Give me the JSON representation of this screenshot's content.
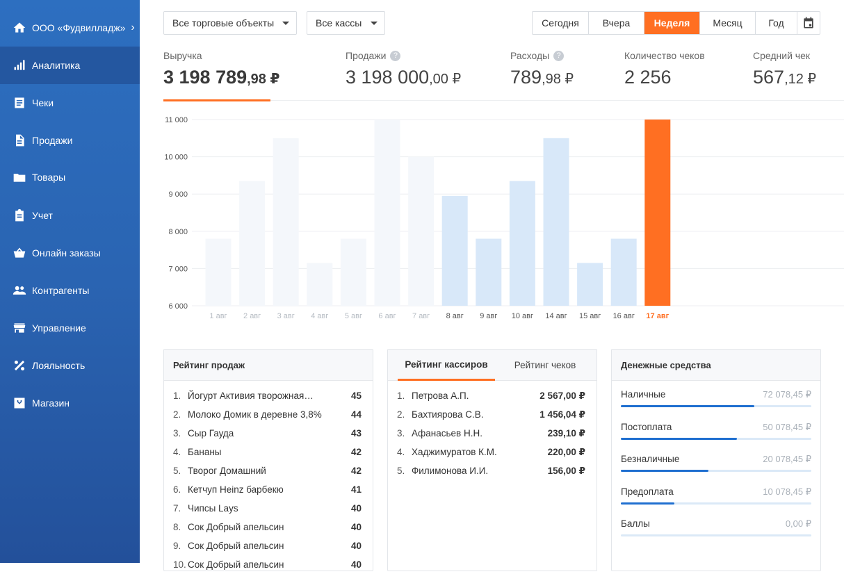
{
  "sidebar": {
    "org": "ООО «Фудвилладж»",
    "items": [
      {
        "label": "Аналитика",
        "icon": "chart-bars-icon",
        "active": true
      },
      {
        "label": "Чеки",
        "icon": "receipt-icon"
      },
      {
        "label": "Продажи",
        "icon": "document-icon"
      },
      {
        "label": "Товары",
        "icon": "folder-icon"
      },
      {
        "label": "Учет",
        "icon": "clipboard-icon"
      },
      {
        "label": "Онлайн заказы",
        "icon": "basket-icon"
      },
      {
        "label": "Контрагенты",
        "icon": "people-icon"
      },
      {
        "label": "Управление",
        "icon": "store-icon"
      },
      {
        "label": "Лояльность",
        "icon": "percent-icon"
      },
      {
        "label": "Магазин",
        "icon": "shop-box-icon"
      }
    ]
  },
  "filters": {
    "outlets": "Все торговые объекты",
    "registers": "Все кассы"
  },
  "periods": [
    "Сегодня",
    "Вчера",
    "Неделя",
    "Месяц",
    "Год"
  ],
  "active_period": "Неделя",
  "kpis": {
    "revenue": {
      "label": "Выручка",
      "int": "3 198 789",
      "cents": ",98 ₽"
    },
    "sales": {
      "label": "Продажи",
      "int": "3 198 000",
      "cents": ",00 ₽"
    },
    "expenses": {
      "label": "Расходы",
      "int": "789",
      "cents": ",98 ₽"
    },
    "checks": {
      "label": "Количество чеков",
      "int": "2 256"
    },
    "avg": {
      "label": "Средний чек",
      "int": "567",
      "cents": ",12 ₽"
    },
    "help": "?"
  },
  "chart_data": {
    "type": "bar",
    "categories": [
      "1 авг",
      "2 авг",
      "3 авг",
      "4 авг",
      "5 авг",
      "6 авг",
      "7 авг",
      "8 авг",
      "9 авг",
      "10 авг",
      "14 авг",
      "15 авг",
      "16 авг",
      "17 авг"
    ],
    "values": [
      7800,
      9350,
      10500,
      7150,
      7800,
      11000,
      10000,
      8950,
      7800,
      9350,
      10500,
      7150,
      7800,
      11000
    ],
    "ylim": [
      6000,
      11000
    ],
    "yticks": [
      6000,
      7000,
      8000,
      9000,
      10000,
      11000
    ],
    "ytick_labels": [
      "6 000",
      "7 000",
      "8 000",
      "9 000",
      "10 000",
      "11 000"
    ],
    "colors": {
      "past": "#f4f7fb",
      "current": "#d8e8f9",
      "selected": "#ff6f22",
      "past_label": "#b6bcc3",
      "label": "#555555"
    },
    "past_count": 7,
    "selected_index": 13
  },
  "sales_rating": {
    "title": "Рейтинг продаж",
    "rows": [
      {
        "n": "1.",
        "name": "Йогурт Активия творожная…",
        "v": "45"
      },
      {
        "n": "2.",
        "name": "Молоко Домик в деревне 3,8%",
        "v": "44"
      },
      {
        "n": "3.",
        "name": "Сыр Гауда",
        "v": "43"
      },
      {
        "n": "4.",
        "name": "Бананы",
        "v": "42"
      },
      {
        "n": "5.",
        "name": "Творог Домашний",
        "v": "42"
      },
      {
        "n": "6.",
        "name": "Кетчуп Heinz барбекю",
        "v": "41"
      },
      {
        "n": "7.",
        "name": "Чипсы Lays",
        "v": "40"
      },
      {
        "n": "8.",
        "name": "Сок Добрый апельсин",
        "v": "40"
      },
      {
        "n": "9.",
        "name": "Сок Добрый апельсин",
        "v": "40"
      },
      {
        "n": "10.",
        "name": "Сок Добрый апельсин",
        "v": "40"
      }
    ]
  },
  "cashiers": {
    "tab_cashiers": "Рейтинг кассиров",
    "tab_checks": "Рейтинг чеков",
    "rows": [
      {
        "n": "1.",
        "name": "Петрова А.П.",
        "v": "2 567,00 ₽"
      },
      {
        "n": "2.",
        "name": "Бахтиярова С.В.",
        "v": "1 456,04 ₽"
      },
      {
        "n": "3.",
        "name": "Афанасьев Н.Н.",
        "v": "239,10 ₽"
      },
      {
        "n": "4.",
        "name": "Хаджимуратов К.М.",
        "v": "220,00 ₽"
      },
      {
        "n": "5.",
        "name": "Филимонова И.И.",
        "v": "156,00 ₽"
      }
    ]
  },
  "money": {
    "title": "Денежные средства",
    "items": [
      {
        "label": "Наличные",
        "value": "72 078,45 ₽",
        "fraction": 0.7
      },
      {
        "label": "Постоплата",
        "value": "50 078,45 ₽",
        "fraction": 0.61
      },
      {
        "label": "Безналичные",
        "value": "20 078,45 ₽",
        "fraction": 0.46
      },
      {
        "label": "Предоплата",
        "value": "10 078,45 ₽",
        "fraction": 0.28
      },
      {
        "label": "Баллы",
        "value": "0,00 ₽",
        "fraction": 0
      }
    ]
  }
}
